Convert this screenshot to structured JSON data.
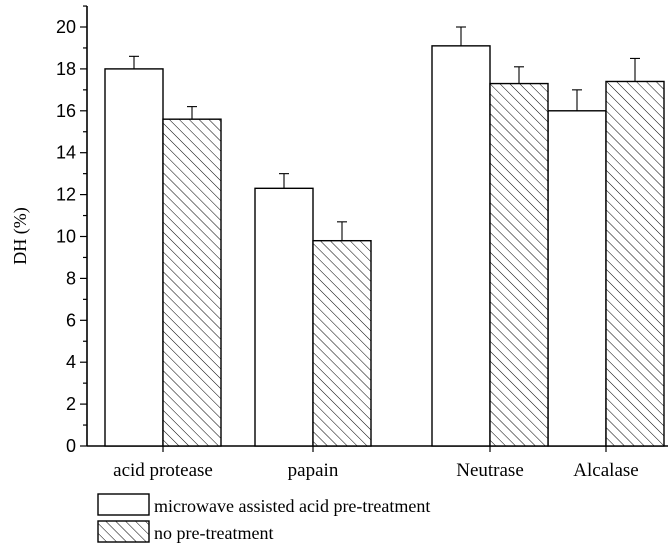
{
  "chart_data": {
    "type": "bar",
    "title": "",
    "xlabel": "",
    "ylabel": "DH (%)",
    "ylim": [
      0,
      21
    ],
    "yticks": [
      0,
      2,
      4,
      6,
      8,
      10,
      12,
      14,
      16,
      18,
      20
    ],
    "categories": [
      "acid protease",
      "papain",
      "Neutrase",
      "Alcalase"
    ],
    "series": [
      {
        "name": "microwave assisted acid pre-treatment",
        "fill": "#ffffff",
        "pattern": "none",
        "values": [
          18.0,
          12.3,
          19.1,
          16.0
        ],
        "errors": [
          0.6,
          0.7,
          0.9,
          1.0
        ]
      },
      {
        "name": "no pre-treatment",
        "fill": "#ffffff",
        "pattern": "diagonal-hatch",
        "values": [
          15.6,
          9.8,
          17.3,
          17.4
        ],
        "errors": [
          0.6,
          0.9,
          0.8,
          1.1
        ]
      }
    ],
    "grid": false,
    "legend_position": "bottom-left"
  }
}
